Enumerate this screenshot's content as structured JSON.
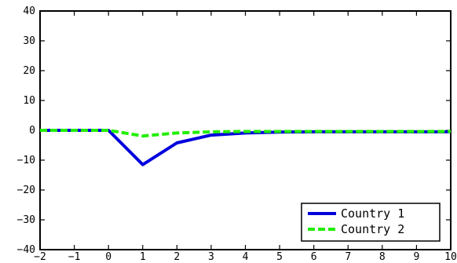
{
  "chart_data": {
    "type": "line",
    "x": [
      -2,
      -1.5,
      -1,
      -0.5,
      0,
      1,
      2,
      3,
      4,
      5,
      6,
      7,
      8,
      9,
      10
    ],
    "series": [
      {
        "name": "Country 1",
        "color": "#0000dd",
        "style": "solid",
        "values": [
          0,
          0,
          0,
          0,
          0,
          -11.5,
          -4.2,
          -1.6,
          -0.9,
          -0.6,
          -0.5,
          -0.5,
          -0.5,
          -0.5,
          -0.5
        ]
      },
      {
        "name": "Country 2",
        "color": "#22ee00",
        "style": "dashed",
        "values": [
          0,
          0,
          0,
          0,
          0,
          -1.9,
          -0.9,
          -0.5,
          -0.4,
          -0.4,
          -0.4,
          -0.4,
          -0.4,
          -0.4,
          -0.4
        ]
      }
    ],
    "xlim": [
      -2,
      10
    ],
    "ylim": [
      -40,
      40
    ],
    "xticks": [
      "−2",
      "−1",
      "0",
      "1",
      "2",
      "3",
      "4",
      "5",
      "6",
      "7",
      "8",
      "9",
      "10"
    ],
    "yticks": [
      "40",
      "30",
      "20",
      "10",
      "0",
      "−10",
      "−20",
      "−30",
      "−40"
    ],
    "legend_position": "bottom-right",
    "grid": false,
    "title": "",
    "xlabel": "",
    "ylabel": ""
  }
}
